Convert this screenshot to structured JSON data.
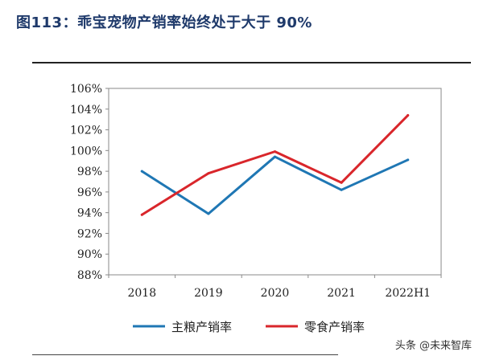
{
  "figure": {
    "title": "图113：乖宝宠物产销率始终处于大于 90%"
  },
  "watermark": "头条 @未来智库",
  "chart_data": {
    "type": "line",
    "categories": [
      "2018",
      "2019",
      "2020",
      "2021",
      "2022H1"
    ],
    "series": [
      {
        "name": "主粮产销率",
        "color": "#1f77b4",
        "values": [
          98.0,
          93.9,
          99.4,
          96.2,
          99.1
        ]
      },
      {
        "name": "零食产销率",
        "color": "#d9262b",
        "values": [
          93.8,
          97.8,
          99.9,
          96.9,
          103.4
        ]
      }
    ],
    "ylim": [
      88,
      106
    ],
    "yticks": [
      88,
      90,
      92,
      94,
      96,
      98,
      100,
      102,
      104,
      106
    ],
    "ytick_labels": [
      "88%",
      "90%",
      "92%",
      "94%",
      "96%",
      "98%",
      "100%",
      "102%",
      "104%",
      "106%"
    ],
    "grid": false,
    "legend": "bottom"
  }
}
